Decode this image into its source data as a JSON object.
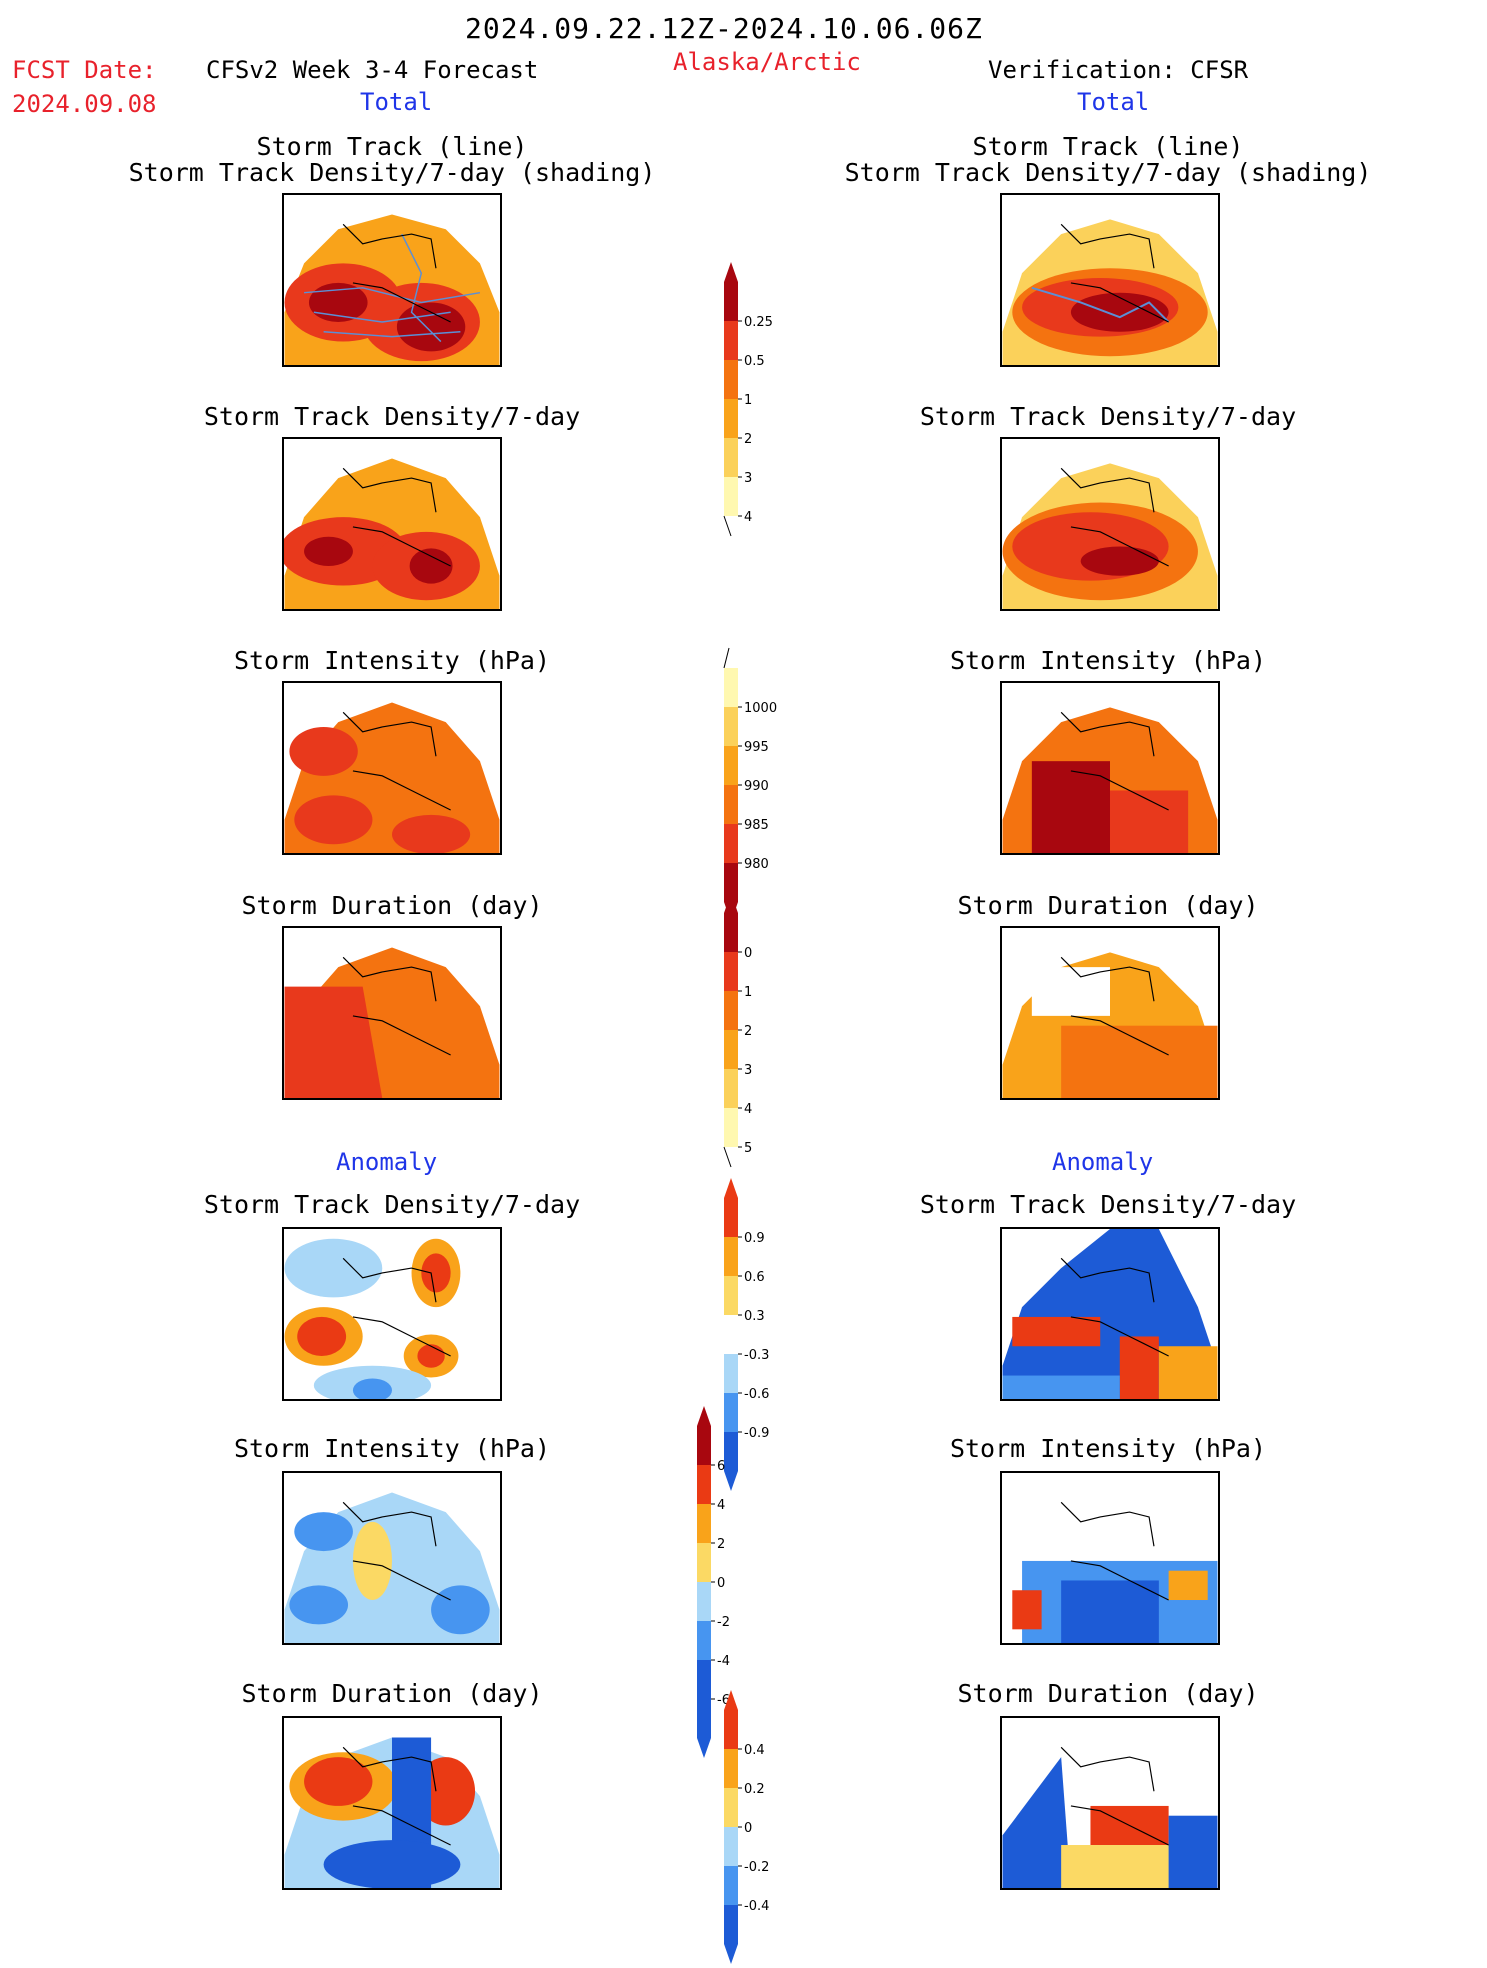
{
  "header": {
    "period": "2024.09.22.12Z-2024.10.06.06Z",
    "fcst_label": "FCST Date:",
    "fcst_date": "2024.09.08",
    "model": "CFSv2 Week 3-4 Forecast",
    "region": "Alaska/Arctic",
    "verification": "Verification: CFSR",
    "left_section": "Total",
    "right_section": "Total",
    "anomaly_left": "Anomaly",
    "anomaly_right": "Anomaly"
  },
  "titles": {
    "track_line": "Storm Track (line)",
    "track_shading": "Storm Track Density/7-day (shading)",
    "density": "Storm Track Density/7-day",
    "intensity": "Storm Intensity (hPa)",
    "duration": "Storm Duration (day)"
  },
  "colors": {
    "warm": [
      "#fff8b0",
      "#fbd15a",
      "#f9a31a",
      "#f47310",
      "#e8391c",
      "#a8070f"
    ],
    "anom": [
      "#1d5bd6",
      "#4795f0",
      "#a9d7f7",
      "#ffffff",
      "#fbd964",
      "#f9a31a",
      "#ea3a14",
      "#a8070f"
    ]
  },
  "chart_data": [
    {
      "type": "heatmap",
      "name": "colorbar-density",
      "levels": [
        "0.25",
        "0.5",
        "1",
        "2",
        "3",
        "4"
      ]
    },
    {
      "type": "heatmap",
      "name": "colorbar-intensity",
      "levels": [
        "1000",
        "995",
        "990",
        "985",
        "980"
      ]
    },
    {
      "type": "heatmap",
      "name": "colorbar-duration",
      "levels": [
        "0",
        "1",
        "2",
        "3",
        "4",
        "5"
      ]
    },
    {
      "type": "heatmap",
      "name": "colorbar-density-anomaly",
      "levels": [
        "0.9",
        "0.6",
        "0.3",
        "-0.3",
        "-0.6",
        "-0.9"
      ]
    },
    {
      "type": "heatmap",
      "name": "colorbar-intensity-anomaly",
      "levels": [
        "6",
        "4",
        "2",
        "0",
        "-2",
        "-4",
        "-6"
      ]
    },
    {
      "type": "heatmap",
      "name": "colorbar-duration-anomaly",
      "levels": [
        "0.4",
        "0.2",
        "0",
        "-0.2",
        "-0.4"
      ]
    }
  ]
}
